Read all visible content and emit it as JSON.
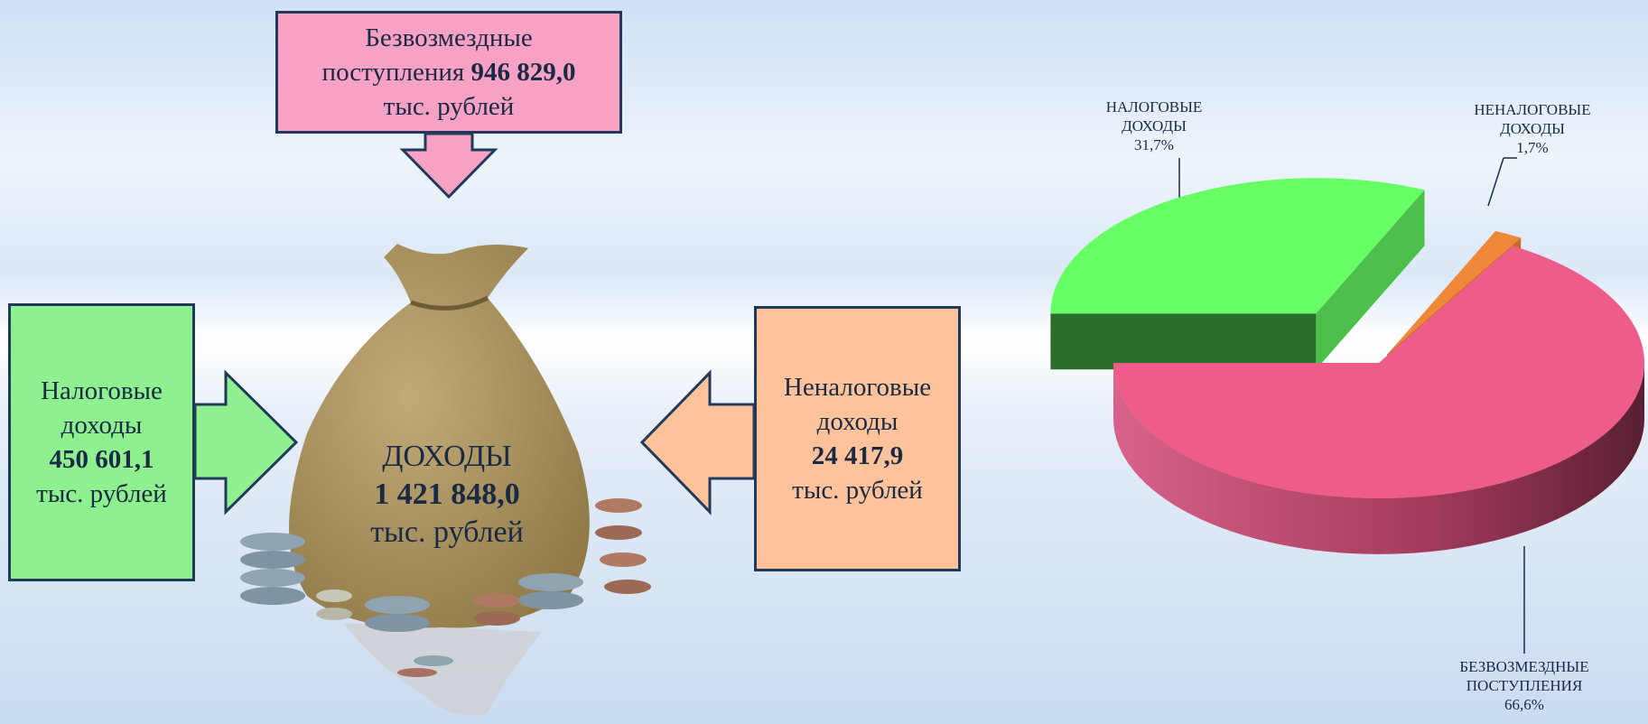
{
  "boxes": [
    {
      "title": "Безвозмездные поступления",
      "amount": "946 829,0",
      "unit": "тыс. рублей"
    },
    {
      "title": "Налоговые доходы",
      "amount": "450 601,1",
      "unit": "тыс. рублей"
    },
    {
      "title": "Неналоговые доходы",
      "amount": "24 417,9",
      "unit": "тыс. рублей"
    }
  ],
  "center": {
    "title": "ДОХОДЫ",
    "amount": "1 421 848,0",
    "unit": "тыс. рублей"
  },
  "chart_data": {
    "type": "pie3d",
    "categories": [
      "НАЛОГОВЫЕ ДОХОДЫ",
      "НЕНАЛОГОВЫЕ ДОХОДЫ",
      "БЕЗВОЗМЕЗДНЫЕ ПОСТУПЛЕНИЯ"
    ],
    "values": [
      31.7,
      1.7,
      66.6
    ],
    "value_labels": [
      "31,7%",
      "1,7%",
      "66,6%"
    ],
    "colors": [
      "#66ff66",
      "#f0883a",
      "#ee5c8a"
    ]
  }
}
